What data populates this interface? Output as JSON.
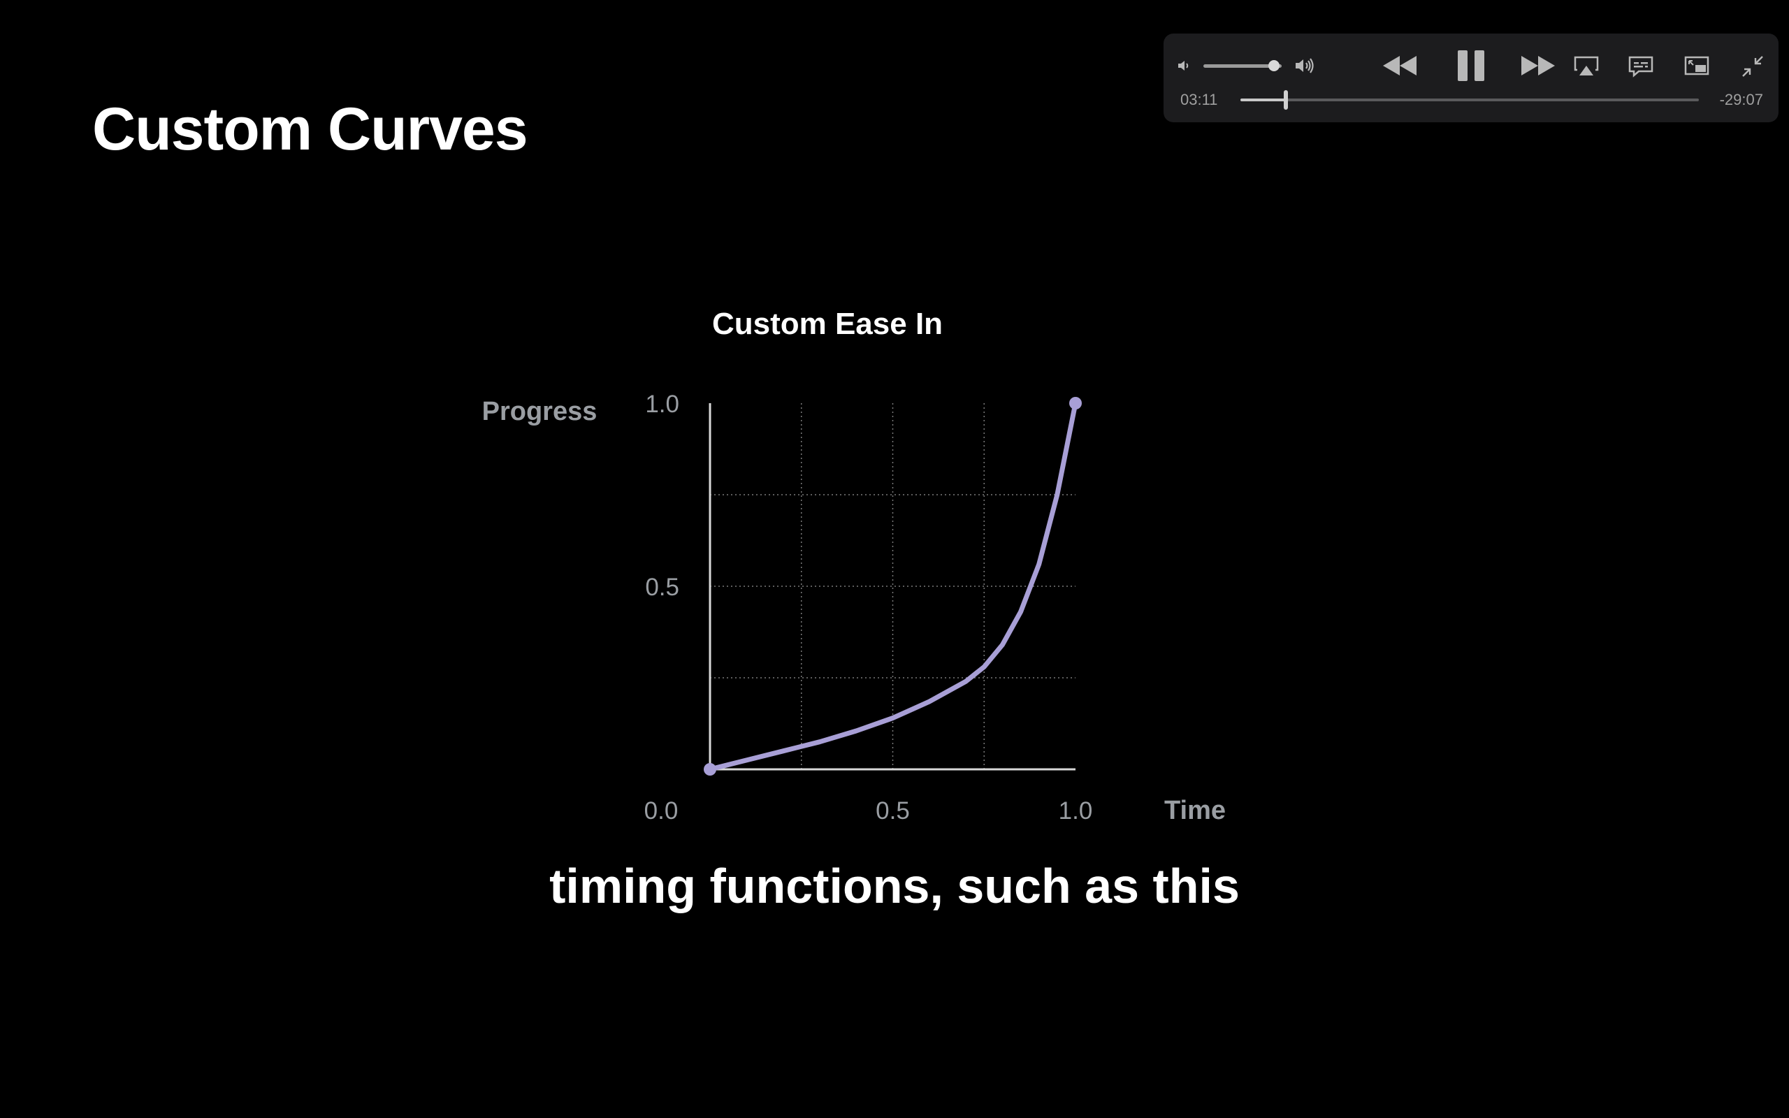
{
  "slide": {
    "title": "Custom Curves",
    "subtitle": "timing functions, such as this"
  },
  "player": {
    "elapsed": "03:11",
    "remaining": "-29:07",
    "playback_progress": 0.099,
    "volume_level": 0.9,
    "state": "playing",
    "icons": {
      "volume_low": "speaker-low-icon",
      "volume_high": "speaker-high-icon",
      "rewind": "rewind-icon",
      "pause": "pause-icon",
      "fast_forward": "fast-forward-icon",
      "airplay": "airplay-icon",
      "subtitles": "subtitles-icon",
      "pip": "picture-in-picture-icon",
      "exit_fullscreen": "exit-fullscreen-icon"
    }
  },
  "colors": {
    "background": "#000000",
    "curve": "#a89fd6",
    "axis": "#d8d8d8",
    "grid": "#7a7a7a",
    "label": "#9a9ea3",
    "title": "#ffffff"
  },
  "chart_data": {
    "type": "line",
    "title": "Custom Ease In",
    "xlabel": "Time",
    "ylabel": "Progress",
    "x_ticks": [
      "0.0",
      "0.5",
      "1.0"
    ],
    "y_ticks": [
      "1.0",
      "0.5"
    ],
    "xlim": [
      0,
      1
    ],
    "ylim": [
      0,
      1
    ],
    "grid": true,
    "grid_x": [
      0.25,
      0.5,
      0.75
    ],
    "grid_y": [
      0.25,
      0.5,
      0.75
    ],
    "series": [
      {
        "x": [
          0,
          0.1,
          0.2,
          0.3,
          0.4,
          0.5,
          0.6,
          0.7,
          0.75,
          0.8,
          0.85,
          0.9,
          0.95,
          1.0
        ],
        "y": [
          0,
          0.025,
          0.05,
          0.075,
          0.105,
          0.14,
          0.185,
          0.24,
          0.28,
          0.34,
          0.43,
          0.56,
          0.75,
          1.0
        ]
      }
    ],
    "endpoints": [
      [
        0,
        0
      ],
      [
        1,
        1
      ]
    ]
  }
}
